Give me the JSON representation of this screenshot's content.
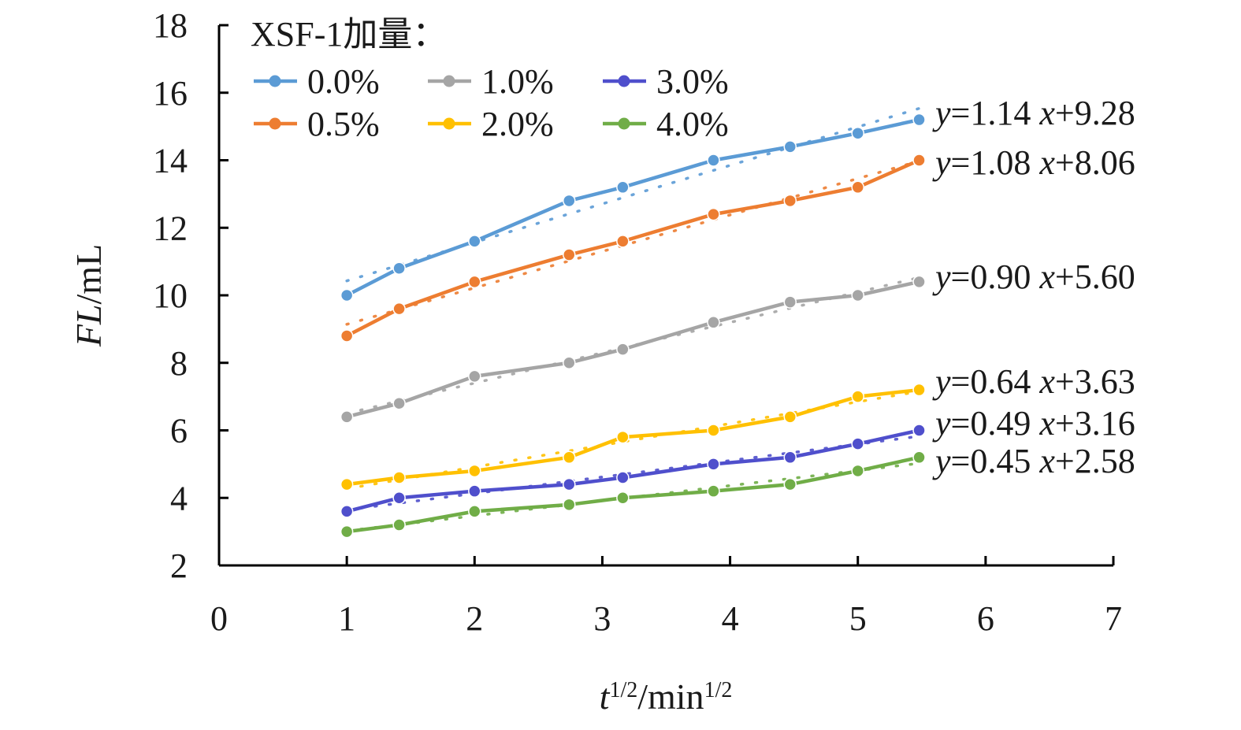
{
  "chart_data": {
    "type": "line",
    "xlim": [
      0,
      7
    ],
    "ylim": [
      2,
      18
    ],
    "x_ticks": [
      0,
      1,
      2,
      3,
      4,
      5,
      6,
      7
    ],
    "y_ticks": [
      2,
      4,
      6,
      8,
      10,
      12,
      14,
      16,
      18
    ],
    "xlabel": {
      "base": "t",
      "sup1": "1/2",
      "mid": "/min",
      "sup2": "1/2"
    },
    "ylabel": {
      "italic": "FL",
      "rest": "/mL"
    },
    "legend_title": "XSF-1加量：",
    "legend_position": "top-left",
    "x": [
      1.0,
      1.41,
      2.0,
      2.74,
      3.16,
      3.87,
      4.47,
      5.0,
      5.48
    ],
    "series": [
      {
        "name": "0.0%",
        "color": "#5b9bd5",
        "values": [
          10.0,
          10.8,
          11.6,
          12.8,
          13.2,
          14.0,
          14.4,
          14.8,
          15.2
        ],
        "fit": {
          "slope": 1.14,
          "intercept": 9.28,
          "label_y": "y",
          "label_rest": "=1.14 ",
          "label_x": "x",
          "label_tail": "+9.28"
        }
      },
      {
        "name": "0.5%",
        "color": "#ed7d31",
        "values": [
          8.8,
          9.6,
          10.4,
          11.2,
          11.6,
          12.4,
          12.8,
          13.2,
          14.0
        ],
        "fit": {
          "slope": 1.08,
          "intercept": 8.06,
          "label_y": "y",
          "label_rest": "=1.08 ",
          "label_x": "x",
          "label_tail": "+8.06"
        }
      },
      {
        "name": "1.0%",
        "color": "#a5a5a5",
        "values": [
          6.4,
          6.8,
          7.6,
          8.0,
          8.4,
          9.2,
          9.8,
          10.0,
          10.4
        ],
        "fit": {
          "slope": 0.9,
          "intercept": 5.6,
          "label_y": "y",
          "label_rest": "=0.90 ",
          "label_x": "x",
          "label_tail": "+5.60"
        }
      },
      {
        "name": "2.0%",
        "color": "#ffc000",
        "values": [
          4.4,
          4.6,
          4.8,
          5.2,
          5.8,
          6.0,
          6.4,
          7.0,
          7.2
        ],
        "fit": {
          "slope": 0.64,
          "intercept": 3.63,
          "label_y": "y",
          "label_rest": "=0.64 ",
          "label_x": "x",
          "label_tail": "+3.63"
        }
      },
      {
        "name": "3.0%",
        "color": "#4f4fcc",
        "values": [
          3.6,
          4.0,
          4.2,
          4.4,
          4.6,
          5.0,
          5.2,
          5.6,
          6.0
        ],
        "fit": {
          "slope": 0.49,
          "intercept": 3.16,
          "label_y": "y",
          "label_rest": "=0.49 ",
          "label_x": "x",
          "label_tail": "+3.16"
        }
      },
      {
        "name": "4.0%",
        "color": "#70ad47",
        "values": [
          3.0,
          3.2,
          3.6,
          3.8,
          4.0,
          4.2,
          4.4,
          4.8,
          5.2
        ],
        "fit": {
          "slope": 0.45,
          "intercept": 2.58,
          "label_y": "y",
          "label_rest": "=0.45 ",
          "label_x": "x",
          "label_tail": "+2.58"
        }
      }
    ],
    "legend_order": [
      "0.0%",
      "1.0%",
      "3.0%",
      "0.5%",
      "2.0%",
      "4.0%"
    ]
  }
}
